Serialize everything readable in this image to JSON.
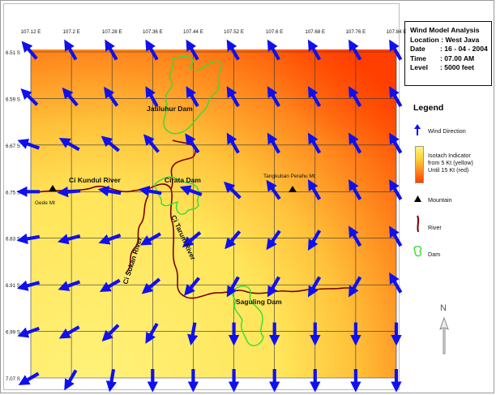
{
  "info": {
    "title": "Wind Model Analysis",
    "location_label": "Location",
    "location": "West Java",
    "date_label": "Date",
    "date": "16 - 04 - 2004",
    "time_label": "Time",
    "time": "07.00 AM",
    "level_label": "Level",
    "level": "5000 feet"
  },
  "legend": {
    "title": "Legend",
    "wind_direction": "Wind Direction",
    "isotach_line1": "Isotach Indicator",
    "isotach_line2": "from 5 Kt (yellow)",
    "isotach_line3": "Until 15 Kt (red)",
    "mountain": "Mountain",
    "river": "River",
    "dam": "Dam"
  },
  "compass": {
    "north": "N"
  },
  "map": {
    "lon_ticks": [
      "107.12 E",
      "107.2 E",
      "107.28 E",
      "107.36 E",
      "107.44 E",
      "107.52 E",
      "107.6 E",
      "107.68 E",
      "107.76 E",
      "107.84 E"
    ],
    "lat_ticks": [
      "6.51 S",
      "6.59 S",
      "6.67 S",
      "6.75 S",
      "6.83 S",
      "6.91 S",
      "6.99 S",
      "7.07 S"
    ],
    "places": [
      {
        "name": "Jatiluhur Dam",
        "type": "dam"
      },
      {
        "name": "Cirata Dam",
        "type": "dam"
      },
      {
        "name": "Saguling Dam",
        "type": "dam"
      },
      {
        "name": "Ci Kundul River",
        "type": "river"
      },
      {
        "name": "Ci Sokan River",
        "type": "river"
      },
      {
        "name": "Ci Tarum River",
        "type": "river"
      },
      {
        "name": "Gede Mt",
        "type": "mountain"
      },
      {
        "name": "Tangkuban Perahu Mt",
        "type": "mountain"
      }
    ],
    "wind_angles_deg": [
      [
        -130,
        -120,
        -120,
        -120,
        -120,
        -120,
        -120,
        -120,
        -120,
        -120
      ],
      [
        -135,
        -130,
        -125,
        -120,
        -120,
        -120,
        -120,
        -120,
        -120,
        -120
      ],
      [
        -160,
        -150,
        -140,
        -130,
        -125,
        -120,
        -120,
        -120,
        -120,
        -120
      ],
      [
        180,
        175,
        -170,
        -170,
        -160,
        -135,
        -125,
        -120,
        -120,
        -120
      ],
      [
        170,
        165,
        160,
        150,
        140,
        130,
        125,
        120,
        -120,
        -120
      ],
      [
        165,
        160,
        150,
        140,
        130,
        120,
        120,
        120,
        120,
        -120
      ],
      [
        160,
        150,
        135,
        120,
        100,
        90,
        90,
        90,
        90,
        90
      ],
      [
        150,
        120,
        100,
        90,
        90,
        90,
        90,
        90,
        90,
        90
      ]
    ],
    "colors": {
      "yellow": "#fff27a",
      "orange": "#ffa500",
      "red": "#ff4000",
      "river": "#7a0000",
      "dam": "#33dd33",
      "arrow": "#1010ee",
      "grid": "#333333"
    }
  }
}
